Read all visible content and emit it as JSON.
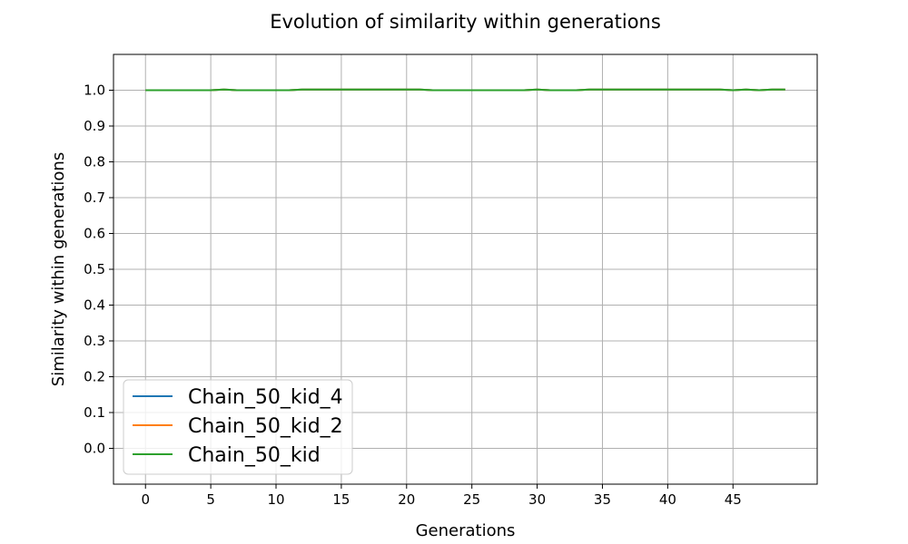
{
  "chart_data": {
    "type": "line",
    "title": "Evolution of similarity within generations",
    "xlabel": "Generations",
    "ylabel": "Similarity within generations",
    "xlim": [
      -2.45,
      51.45
    ],
    "ylim": [
      -0.1,
      1.1
    ],
    "xticks": [
      0,
      5,
      10,
      15,
      20,
      25,
      30,
      35,
      40,
      45
    ],
    "yticks": [
      0.0,
      0.1,
      0.2,
      0.3,
      0.4,
      0.5,
      0.6,
      0.7,
      0.8,
      0.9,
      1.0
    ],
    "xtick_labels": [
      "0",
      "5",
      "10",
      "15",
      "20",
      "25",
      "30",
      "35",
      "40",
      "45"
    ],
    "ytick_labels": [
      "0.0",
      "0.1",
      "0.2",
      "0.3",
      "0.4",
      "0.5",
      "0.6",
      "0.7",
      "0.8",
      "0.9",
      "1.0"
    ],
    "grid": true,
    "legend_position": "lower-left",
    "x": [
      0,
      1,
      2,
      3,
      4,
      5,
      6,
      7,
      8,
      9,
      10,
      11,
      12,
      13,
      14,
      15,
      16,
      17,
      18,
      19,
      20,
      21,
      22,
      23,
      24,
      25,
      26,
      27,
      28,
      29,
      30,
      31,
      32,
      33,
      34,
      35,
      36,
      37,
      38,
      39,
      40,
      41,
      42,
      43,
      44,
      45,
      46,
      47,
      48,
      49
    ],
    "series": [
      {
        "name": "Chain_50_kid_4",
        "color": "#1f77b4",
        "values": [
          1.0,
          1.0,
          1.0,
          1.0,
          1.0,
          1.0,
          1.002,
          1.0,
          1.0,
          1.0,
          1.0,
          1.0,
          1.002,
          1.002,
          1.002,
          1.002,
          1.002,
          1.002,
          1.002,
          1.002,
          1.002,
          1.002,
          1.0,
          1.0,
          1.0,
          1.0,
          1.0,
          1.0,
          1.0,
          1.0,
          1.002,
          1.0,
          1.0,
          1.0,
          1.002,
          1.002,
          1.002,
          1.002,
          1.002,
          1.002,
          1.002,
          1.002,
          1.002,
          1.002,
          1.002,
          1.0,
          1.002,
          1.0,
          1.002,
          1.002
        ]
      },
      {
        "name": "Chain_50_kid_2",
        "color": "#ff7f0e",
        "values": [
          1.0,
          1.0,
          1.0,
          1.0,
          1.0,
          1.0,
          1.002,
          1.0,
          1.0,
          1.0,
          1.0,
          1.0,
          1.002,
          1.002,
          1.002,
          1.002,
          1.002,
          1.002,
          1.002,
          1.002,
          1.002,
          1.002,
          1.0,
          1.0,
          1.0,
          1.0,
          1.0,
          1.0,
          1.0,
          1.0,
          1.002,
          1.0,
          1.0,
          1.0,
          1.002,
          1.002,
          1.002,
          1.002,
          1.002,
          1.002,
          1.002,
          1.002,
          1.002,
          1.002,
          1.002,
          1.0,
          1.002,
          1.0,
          1.002,
          1.002
        ]
      },
      {
        "name": "Chain_50_kid",
        "color": "#2ca02c",
        "values": [
          1.0,
          1.0,
          1.0,
          1.0,
          1.0,
          1.0,
          1.002,
          1.0,
          1.0,
          1.0,
          1.0,
          1.0,
          1.002,
          1.002,
          1.002,
          1.002,
          1.002,
          1.002,
          1.002,
          1.002,
          1.002,
          1.002,
          1.0,
          1.0,
          1.0,
          1.0,
          1.0,
          1.0,
          1.0,
          1.0,
          1.002,
          1.0,
          1.0,
          1.0,
          1.002,
          1.002,
          1.002,
          1.002,
          1.002,
          1.002,
          1.002,
          1.002,
          1.002,
          1.002,
          1.002,
          1.0,
          1.002,
          1.0,
          1.002,
          1.002
        ]
      }
    ]
  }
}
